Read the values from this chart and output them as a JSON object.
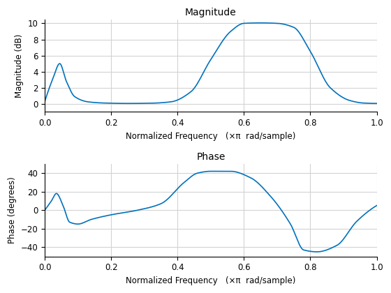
{
  "mag_title": "Magnitude",
  "phase_title": "Phase",
  "xlabel": "Normalized Frequency   (×π  rad/sample)",
  "mag_ylabel": "Magnitude (dB)",
  "phase_ylabel": "Phase (degrees)",
  "line_color": "#0072BD",
  "line_width": 1.2,
  "mag_ylim": [
    -1,
    10.5
  ],
  "phase_ylim": [
    -50,
    50
  ],
  "mag_yticks": [
    0,
    2,
    4,
    6,
    8,
    10
  ],
  "phase_yticks": [
    -40,
    -20,
    0,
    20,
    40
  ],
  "xlim": [
    0,
    1
  ],
  "xticks": [
    0,
    0.2,
    0.4,
    0.6,
    0.8,
    1.0
  ],
  "grid_color": "#D3D3D3",
  "bg_color": "#FFFFFF",
  "title_fontsize": 10,
  "label_fontsize": 8.5,
  "tick_fontsize": 8.5,
  "mag_ctrl_x": [
    0,
    0.025,
    0.045,
    0.065,
    0.09,
    0.13,
    0.18,
    0.25,
    0.32,
    0.38,
    0.44,
    0.5,
    0.56,
    0.6,
    0.65,
    0.7,
    0.75,
    0.8,
    0.86,
    0.92,
    0.96,
    1.0
  ],
  "mag_ctrl_y": [
    0.3,
    3.2,
    5.0,
    2.8,
    0.9,
    0.25,
    0.1,
    0.05,
    0.08,
    0.25,
    1.5,
    5.5,
    9.0,
    10.0,
    10.05,
    10.0,
    9.5,
    6.5,
    2.0,
    0.4,
    0.1,
    0.05
  ],
  "phase_ctrl_x": [
    0,
    0.02,
    0.035,
    0.055,
    0.075,
    0.1,
    0.14,
    0.2,
    0.28,
    0.35,
    0.42,
    0.46,
    0.5,
    0.56,
    0.62,
    0.68,
    0.74,
    0.78,
    0.82,
    0.88,
    0.94,
    1.0
  ],
  "phase_ctrl_y": [
    0,
    10,
    18,
    5,
    -13,
    -15,
    -10,
    -5,
    0,
    7,
    30,
    40,
    42,
    42,
    35,
    15,
    -15,
    -43,
    -45,
    -38,
    -12,
    5
  ]
}
